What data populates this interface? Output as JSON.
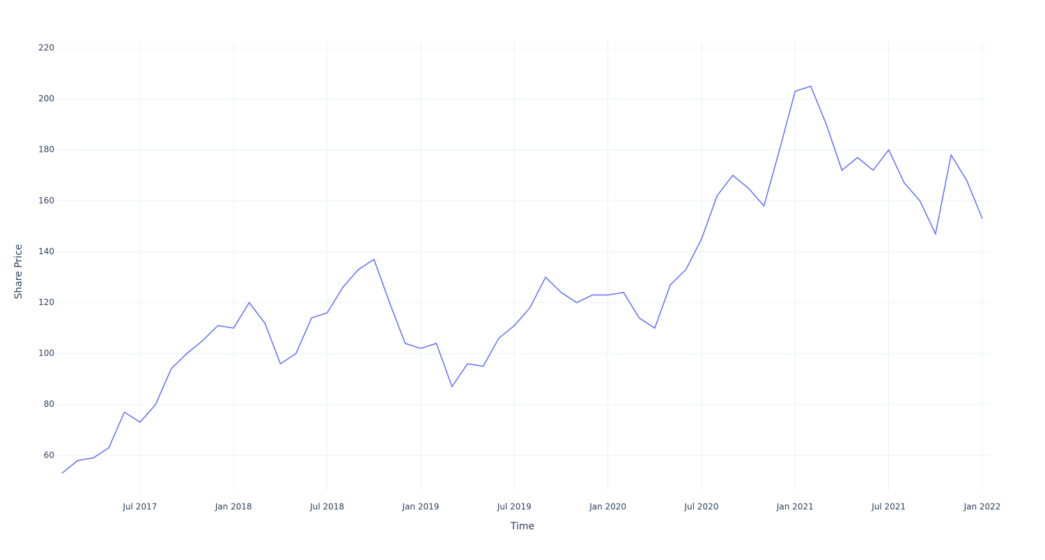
{
  "chart_data": {
    "type": "line",
    "x_label": "Time",
    "y_label": "Share Price",
    "x": [
      "2017-02",
      "2017-03",
      "2017-04",
      "2017-05",
      "2017-06",
      "2017-07",
      "2017-08",
      "2017-09",
      "2017-10",
      "2017-11",
      "2017-12",
      "2018-01",
      "2018-02",
      "2018-03",
      "2018-04",
      "2018-05",
      "2018-06",
      "2018-07",
      "2018-08",
      "2018-09",
      "2018-10",
      "2018-11",
      "2018-12",
      "2019-01",
      "2019-02",
      "2019-03",
      "2019-04",
      "2019-05",
      "2019-06",
      "2019-07",
      "2019-08",
      "2019-09",
      "2019-10",
      "2019-11",
      "2019-12",
      "2020-01",
      "2020-02",
      "2020-03",
      "2020-04",
      "2020-05",
      "2020-06",
      "2020-07",
      "2020-08",
      "2020-09",
      "2020-10",
      "2020-11",
      "2020-12",
      "2021-01",
      "2021-02",
      "2021-03",
      "2021-04",
      "2021-05",
      "2021-06",
      "2021-07",
      "2021-08",
      "2021-09",
      "2021-10",
      "2021-11",
      "2021-12",
      "2022-01"
    ],
    "series": [
      {
        "name": "Share Price",
        "color": "#636efa",
        "values": [
          53,
          58,
          59,
          63,
          77,
          73,
          80,
          94,
          100,
          105,
          111,
          110,
          120,
          112,
          96,
          100,
          114,
          116,
          126,
          133,
          137,
          120,
          104,
          102,
          104,
          87,
          96,
          95,
          106,
          111,
          118,
          130,
          124,
          120,
          123,
          123,
          124,
          114,
          110,
          127,
          133,
          145,
          162,
          170,
          165,
          158,
          180,
          203,
          205,
          190,
          172,
          177,
          172,
          180,
          167,
          160,
          147,
          178,
          168,
          153
        ]
      }
    ],
    "xlim": [
      "2017-02",
      "2022-01"
    ],
    "xticks": [
      {
        "value": "2017-07",
        "label": "Jul 2017"
      },
      {
        "value": "2018-01",
        "label": "Jan 2018"
      },
      {
        "value": "2018-07",
        "label": "Jul 2018"
      },
      {
        "value": "2019-01",
        "label": "Jan 2019"
      },
      {
        "value": "2019-07",
        "label": "Jul 2019"
      },
      {
        "value": "2020-01",
        "label": "Jan 2020"
      },
      {
        "value": "2020-07",
        "label": "Jul 2020"
      },
      {
        "value": "2021-01",
        "label": "Jan 2021"
      },
      {
        "value": "2021-07",
        "label": "Jul 2021"
      },
      {
        "value": "2022-01",
        "label": "Jan 2022"
      }
    ],
    "ylim": [
      46,
      223
    ],
    "yticks": [
      60,
      80,
      100,
      120,
      140,
      160,
      180,
      200,
      220
    ],
    "grid": true
  }
}
